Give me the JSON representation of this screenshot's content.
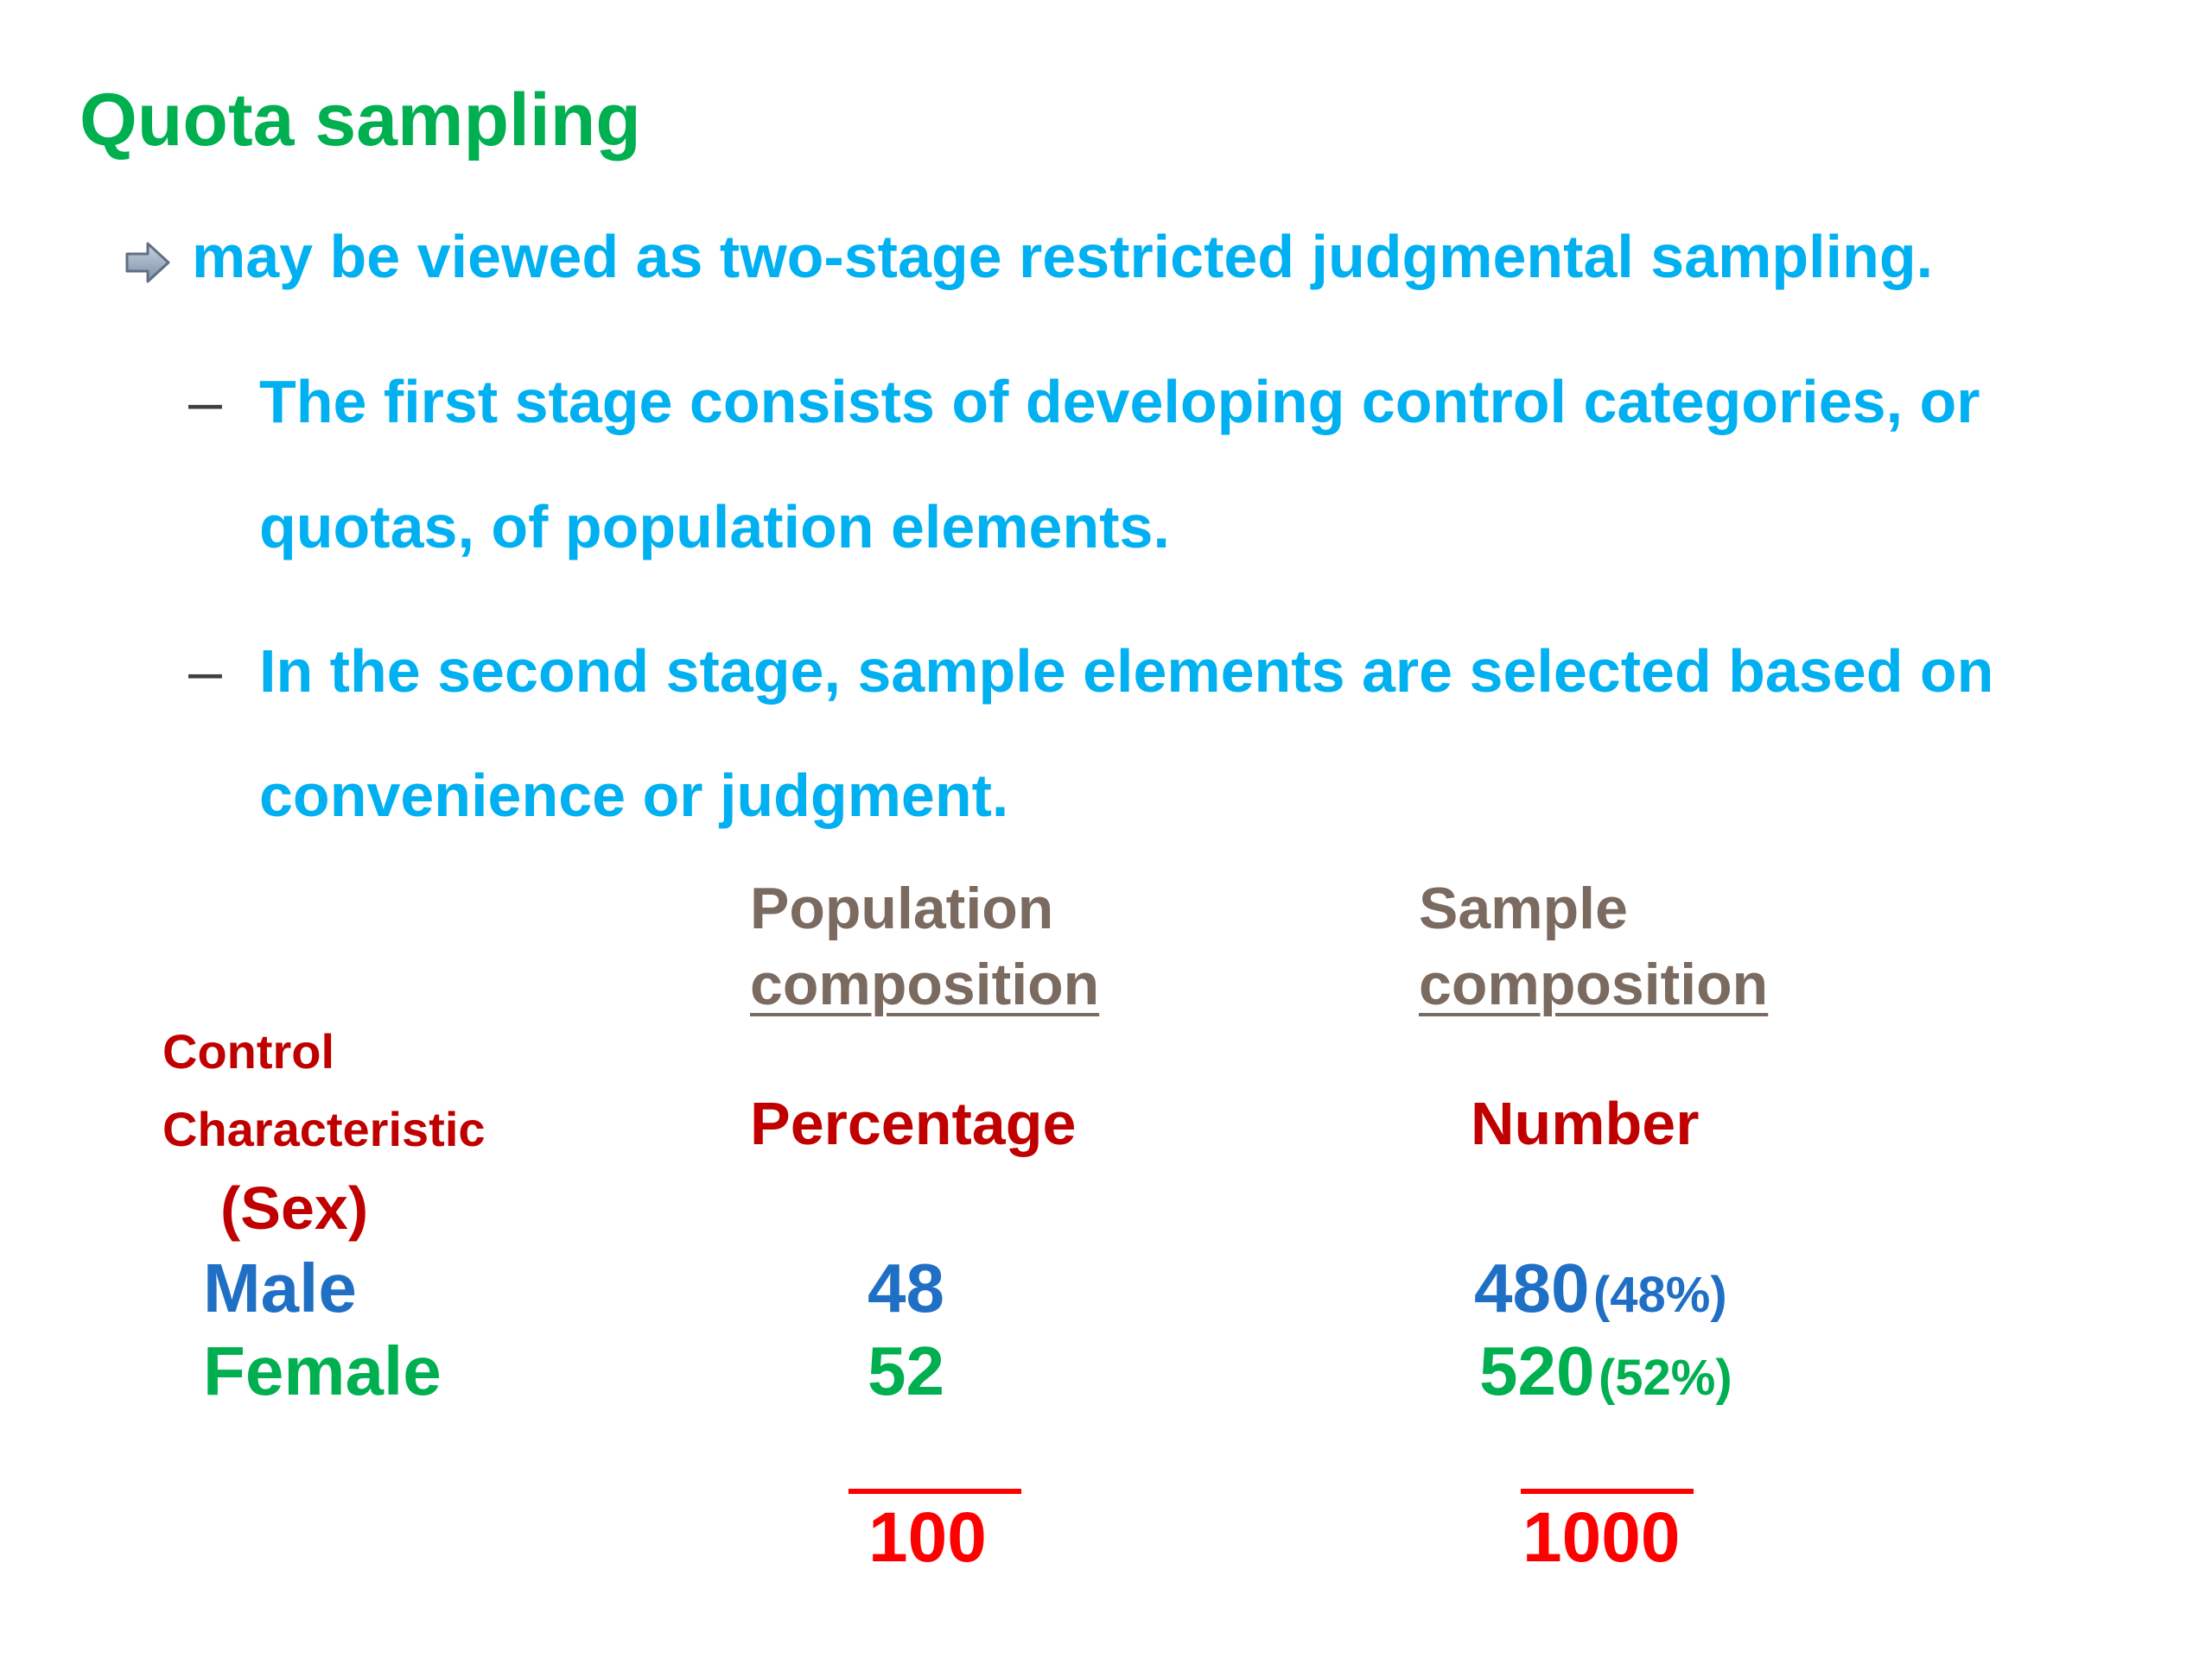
{
  "slide": {
    "title": "Quota sampling",
    "bullet": {
      "icon": "arrow-right-icon",
      "text": "may be viewed as two-stage restricted judgmental sampling."
    },
    "sub_bullets": [
      {
        "dash": "–",
        "line1": "The first stage consists of developing control categories, or",
        "line2": "quotas, of population elements."
      },
      {
        "dash": "–",
        "line1": "In the second stage, sample elements are selected based on",
        "line2": "convenience or judgment."
      }
    ]
  },
  "table": {
    "control_label_1": "Control",
    "control_label_2": "Characteristic",
    "control_label_3": "(Sex)",
    "population_header_1": "Population",
    "population_header_2": "composition",
    "sample_header_1": "Sample",
    "sample_header_2": "composition",
    "population_sub": "Percentage",
    "sample_sub": "Number",
    "rows": [
      {
        "label": "Male",
        "percentage": "48",
        "number": "480",
        "number_pct": "(48%)"
      },
      {
        "label": "Female",
        "percentage": "52",
        "number": "520",
        "number_pct": "(52%)"
      }
    ],
    "population_total": "100",
    "sample_total": "1000"
  },
  "colors": {
    "title": "#00b050",
    "body_text": "#00b0f0",
    "header": "#7a6a5f",
    "label_red": "#c00000",
    "male": "#1f6fc5",
    "female": "#00b050",
    "total": "#ff0000"
  }
}
